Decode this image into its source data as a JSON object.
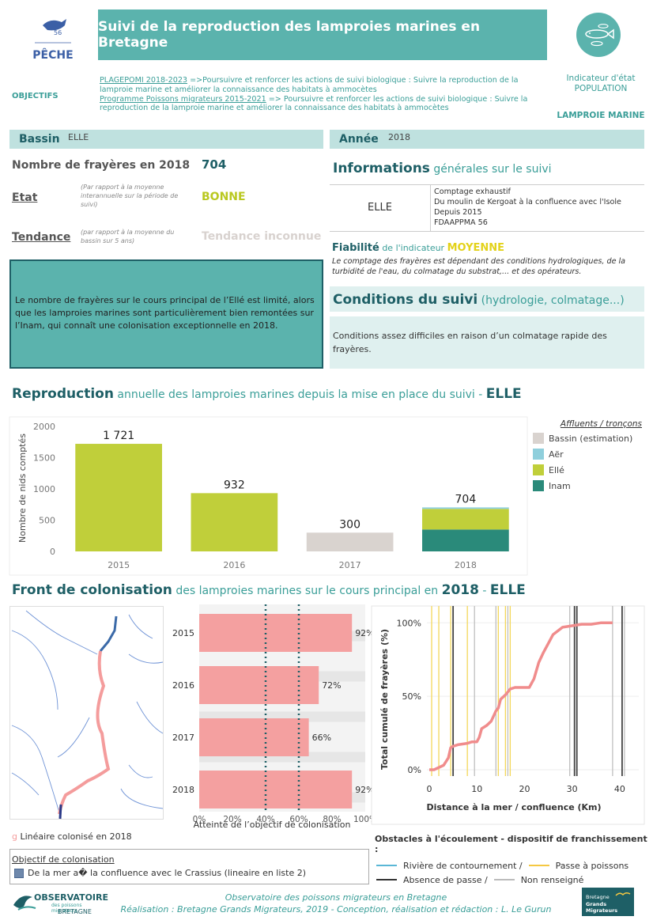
{
  "header": {
    "logo_text": "PÊCHE",
    "logo_number": "56",
    "title": "Suivi de la reproduction des lamproies marines en Bretagne"
  },
  "objectives": {
    "label": "OBJECTIFS",
    "line1_link": "PLAGEPOMI 2018-2023",
    "line1_rest": " =>Poursuivre et renforcer les actions de suivi biologique : Suivre la reproduction de la lamproie marine et améliorer la connaissance des habitats à ammocètes",
    "line2_link": "Programme Poissons migrateurs 2015-2021",
    "line2_rest": " => Poursuivre et renforcer les actions de suivi biologique : Suivre la reproduction de la lamproie marine et améliorer la connaissance des habitats à ammocètes"
  },
  "indicator": {
    "line1": "Indicateur d'état",
    "line2": "POPULATION",
    "species": "LAMPROIE MARINE"
  },
  "basin": {
    "label": "Bassin",
    "value": "ELLE"
  },
  "year": {
    "label": "Année",
    "value": "2018"
  },
  "stats": {
    "count_label": "Nombre de frayères en 2018",
    "count_value": "704",
    "state_label": "Etat",
    "state_note": "(Par rapport à la moyenne interannuelle sur la période de suivi)",
    "state_value": "BONNE",
    "trend_label": "Tendance",
    "trend_note": "(par rapport à la moyenne du bassin sur 5 ans)",
    "trend_value": "Tendance inconnue"
  },
  "summary": "Le nombre de frayères sur le cours principal de l’Ellé est limité, alors que les lamproies marines sont particulièrement bien remontées sur l’Inam, qui connaît une colonisation exceptionnelle en 2018.",
  "info": {
    "title_main": "Informations",
    "title_sub": " générales sur le suivi",
    "river": "ELLE",
    "details": [
      "Comptage exhaustif",
      "Du moulin de Kergoat à la confluence avec l'Isole",
      "Depuis 2015",
      "FDAAPPMA 56"
    ],
    "reliability_main": "Fiabilité",
    "reliability_sub": " de l'indicateur ",
    "reliability_value": "MOYENNE",
    "reliability_note": "Le comptage des frayères est dépendant des conditions hydrologiques, de la turbidité de l'eau, du colmatage du substrat,... et des opérateurs."
  },
  "conditions": {
    "title_main": "Conditions du suivi",
    "title_sub": " (hydrologie, colmatage...)",
    "text": "Conditions assez difficiles en raison d’un colmatage rapide des frayères."
  },
  "reproduction": {
    "title_main": "Reproduction",
    "title_sub": " annuelle des lamproies marines depuis la mise en place du suivi - ",
    "title_river": "ELLE"
  },
  "chart_data": [
    {
      "type": "bar",
      "categories": [
        "2015",
        "2016",
        "2017",
        "2018"
      ],
      "series": [
        {
          "name": "Bassin (estimation)",
          "values": [
            0,
            0,
            300,
            0
          ],
          "color": "#d9d3cf"
        },
        {
          "name": "Aër",
          "values": [
            0,
            0,
            0,
            24
          ],
          "color": "#8fcfdc"
        },
        {
          "name": "Ellé",
          "values": [
            1721,
            932,
            0,
            330
          ],
          "color": "#c0cf3a"
        },
        {
          "name": "Inam",
          "values": [
            0,
            0,
            0,
            350
          ],
          "color": "#2a8a7a"
        }
      ],
      "totals": [
        "1 721",
        "932",
        "300",
        "704"
      ],
      "ylabel": "Nombre de nids comptés",
      "yticks": [
        "0",
        "500",
        "1000",
        "1500",
        "2000"
      ],
      "ylim": [
        0,
        2000
      ],
      "legend_title": "Affluents / tronçons",
      "legend_position": "right"
    },
    {
      "type": "bar",
      "orientation": "horizontal",
      "categories": [
        "2015",
        "2016",
        "2017",
        "2018"
      ],
      "values": [
        92,
        72,
        66,
        92
      ],
      "labels": [
        "92%",
        "72%",
        "66%",
        "92%"
      ],
      "xticks": [
        "0%",
        "20%",
        "40%",
        "60%",
        "80%",
        "100%"
      ],
      "xlim": [
        0,
        100
      ],
      "reference_lines": [
        40,
        60
      ],
      "xlabel": "Atteinte de l’objectif de colonisation",
      "color": "#f4a0a0"
    },
    {
      "type": "line",
      "xlabel": "Distance à la mer / confluence (Km)",
      "ylabel": "Total cumulé de frayères (%)",
      "xticks": [
        "0",
        "10",
        "20",
        "30",
        "40"
      ],
      "yticks": [
        "0%",
        "50%",
        "100%"
      ],
      "xlim": [
        -0.5,
        44
      ],
      "ylim": [
        0,
        105
      ],
      "x": [
        0,
        1,
        3,
        4,
        4.5,
        5,
        6,
        8,
        9,
        10,
        10.5,
        11,
        12,
        13,
        14,
        14.5,
        15,
        16,
        17,
        18,
        19,
        20,
        21,
        22,
        23,
        24,
        25,
        26,
        28,
        30,
        32,
        34,
        36,
        38.5
      ],
      "y": [
        0,
        0,
        3,
        8,
        15,
        16,
        17,
        18,
        19,
        19,
        22,
        28,
        30,
        33,
        40,
        42,
        48,
        51,
        55,
        56,
        56,
        56,
        56,
        62,
        73,
        80,
        86,
        92,
        97,
        98,
        99,
        99,
        100,
        100
      ],
      "obstacles": {
        "yellow": [
          0.5,
          2,
          4.5,
          8,
          14.5,
          16,
          17
        ],
        "dark": [
          5,
          30.5,
          31,
          40.5
        ],
        "grey": [
          9.5,
          14,
          16.5,
          29.5,
          38.5,
          41
        ]
      }
    }
  ],
  "colonisation": {
    "title_main": "Front de colonisation",
    "title_sub": " des lamproies marines sur le cours principal en ",
    "title_year": "2018",
    "title_sep": " - ",
    "title_river": "ELLE",
    "map_legend_glyph": "g",
    "map_legend": "Linéaire colonisé en 2018",
    "objective_title": "Objectif de colonisation",
    "objective_text": "De la mer a� la confluence avec le Crassius (lineaire en liste 2)"
  },
  "obstacles_legend": {
    "title": "Obstacles à l'écoulement - dispositif de franchissement :",
    "item1": "Rivière de contournement /",
    "item2": "Passe à poissons",
    "item3": "Absence de passe /",
    "item4": "Non renseigné",
    "colors": {
      "riviere": "#5ab7d6",
      "passe": "#f5c842",
      "absence": "#333333",
      "nr": "#bbbbbb"
    }
  },
  "footer": {
    "logo_main": "OBSERVATOIRE",
    "logo_sub1": "des poissons migrateurs",
    "logo_sub2": "BRETAGNE",
    "line1": "Observatoire des poissons migrateurs en Bretagne",
    "line2": "Réalisation : Bretagne Grands Migrateurs, 2019 - Conception, réalisation et rédaction : L. Le Gurun",
    "logo2_line1": "Bretagne",
    "logo2_line2": "Grands Migrateurs"
  }
}
